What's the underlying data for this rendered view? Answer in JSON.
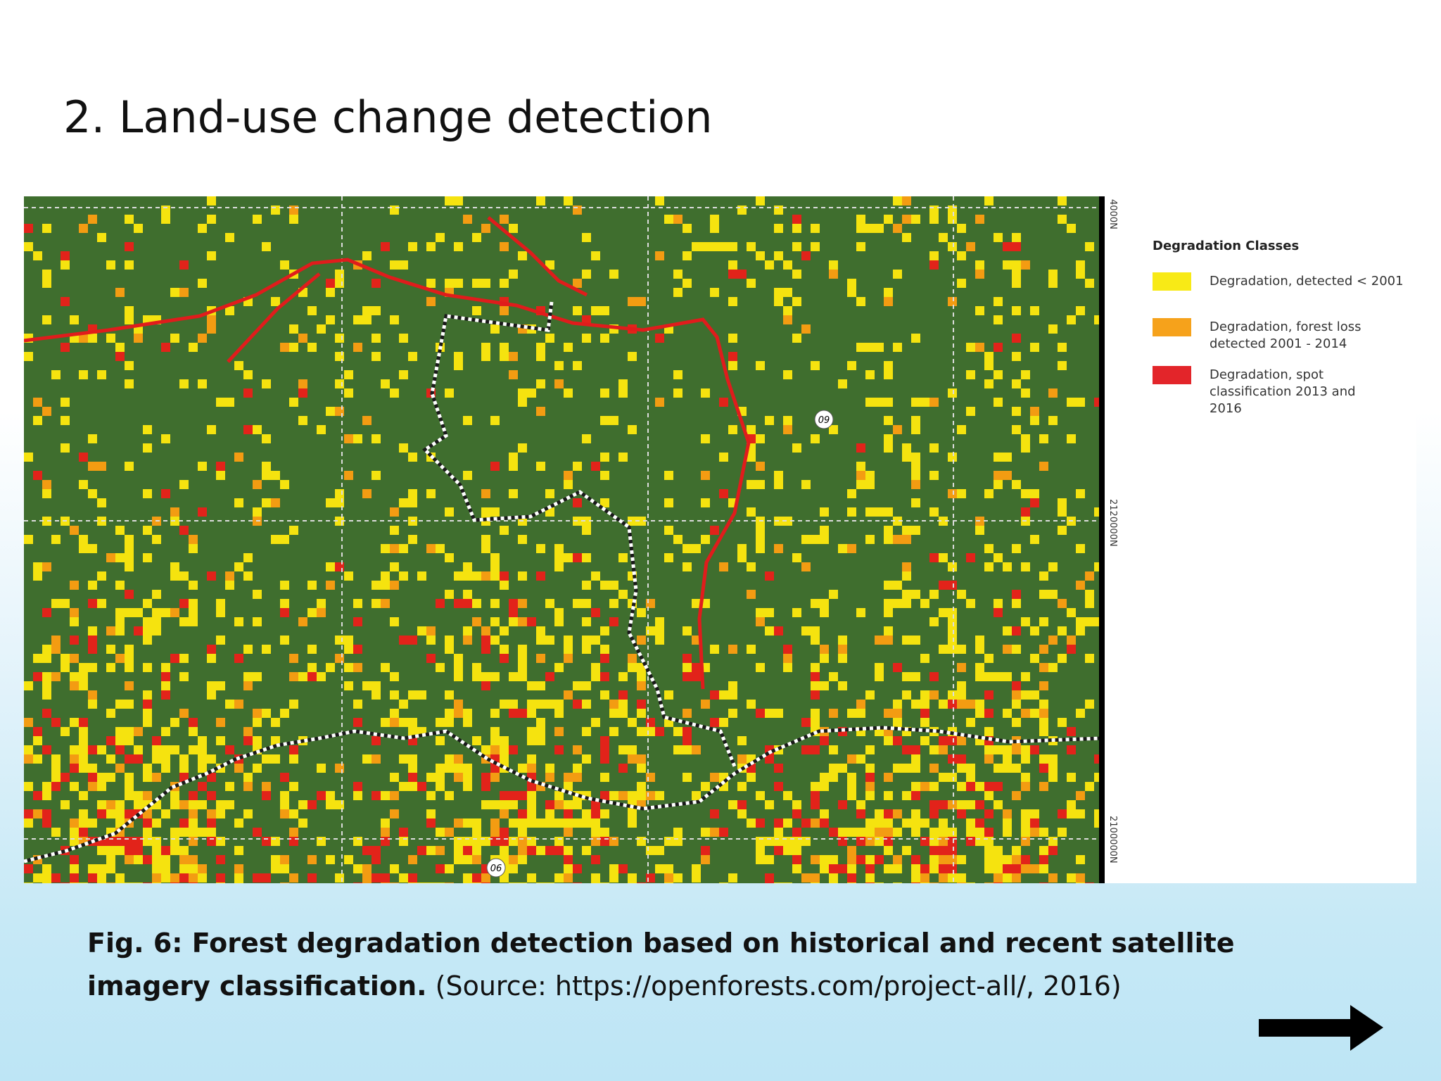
{
  "header": {
    "title": "2. Land-use change detection"
  },
  "figure": {
    "grid_labels": [
      "4000N",
      "2120000N",
      "2100000N"
    ],
    "markers": [
      "09",
      "06"
    ],
    "legend": {
      "title": "Degradation Classes",
      "items": [
        {
          "lines": [
            "Degradation, detected < 2001"
          ]
        },
        {
          "lines": [
            "Degradation, forest loss",
            "detected 2001 - 2014"
          ]
        },
        {
          "lines": [
            "Degradation, spot",
            "classification 2013 and",
            "2016"
          ]
        }
      ]
    }
  },
  "caption": {
    "bold": "Fig. 6: Forest degradation detection based on historical and recent satellite imagery classification.",
    "source": "(Source: https://openforests.com/project-all/, 2016)"
  }
}
